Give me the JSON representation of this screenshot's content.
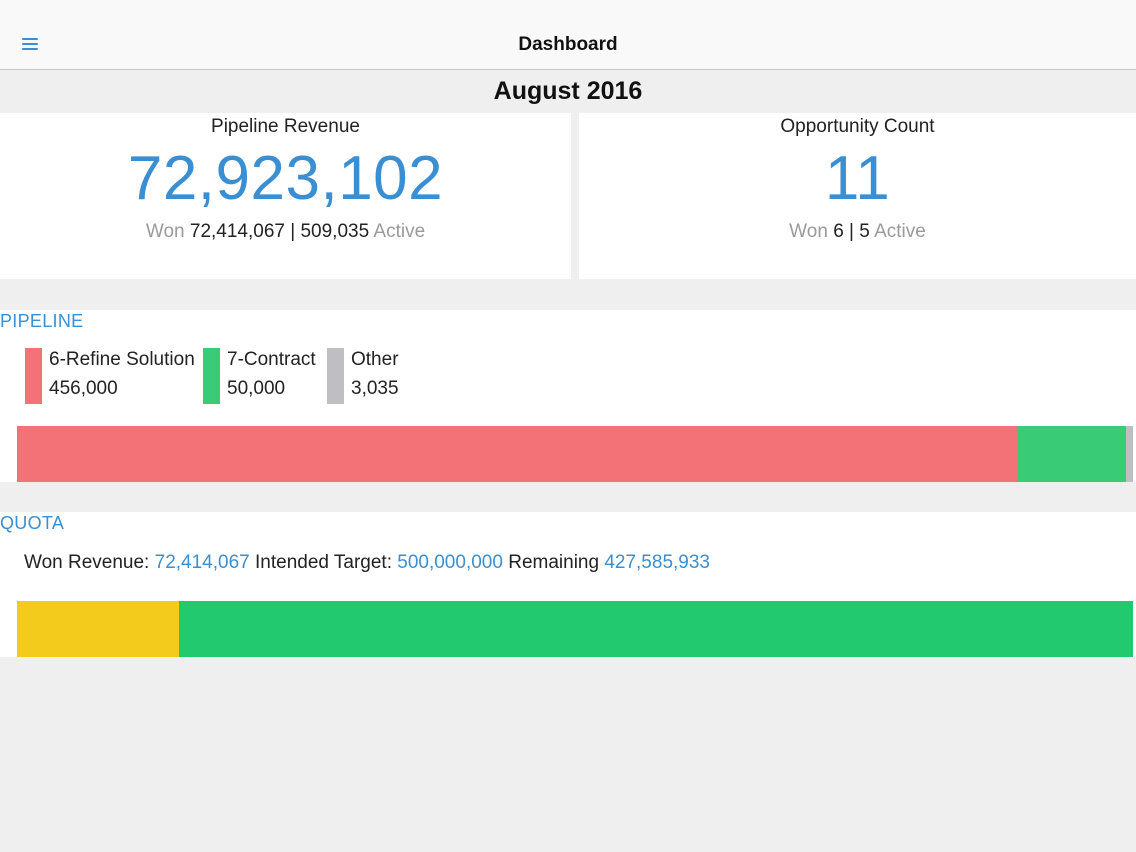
{
  "nav": {
    "title": "Dashboard",
    "menu_icon": "hamburger-menu-icon"
  },
  "period": "August 2016",
  "kpis": {
    "revenue": {
      "label": "Pipeline Revenue",
      "value": "72,923,102",
      "won_label": "Won",
      "won_value": "72,414,067",
      "separator": "|",
      "active_value": "509,035",
      "active_label": "Active"
    },
    "count": {
      "label": "Opportunity Count",
      "value": "11",
      "won_label": "Won",
      "won_value": "6",
      "separator": "|",
      "active_value": "5",
      "active_label": "Active"
    }
  },
  "pipeline": {
    "title": "PIPELINE",
    "segments": [
      {
        "name": "6-Refine Solution",
        "value": "456,000",
        "amount": 456000,
        "color": "#f27277"
      },
      {
        "name": "7-Contract",
        "value": "50,000",
        "amount": 50000,
        "color": "#39cb75"
      },
      {
        "name": "Other",
        "value": "3,035",
        "amount": 3035,
        "color": "#bfbfc3"
      }
    ]
  },
  "quota": {
    "title": "QUOTA",
    "won_label": "Won Revenue:",
    "won_value": "72,414,067",
    "target_label": "Intended Target:",
    "target_value": "500,000,000",
    "remaining_label": "Remaining",
    "remaining_value": "427,585,933",
    "won_amount": 72414067,
    "remaining_amount": 427585933,
    "won_color": "#f2cb1d",
    "remaining_color": "#22c96e"
  }
}
